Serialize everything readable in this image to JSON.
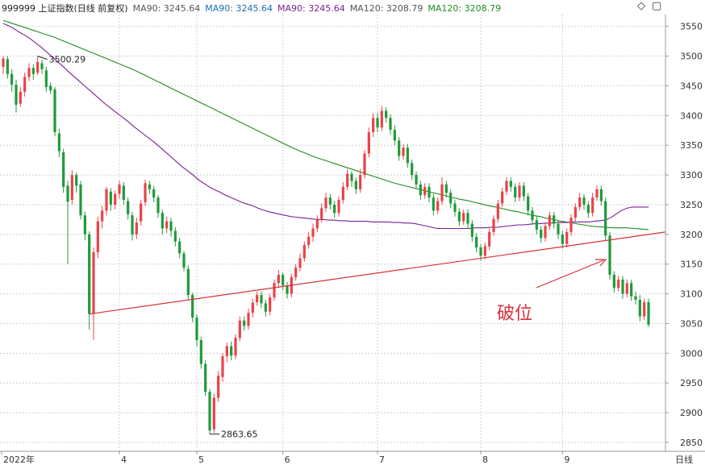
{
  "header": {
    "title": "999999 上证指数(日线 前复权)",
    "ma1_label": "MA90: 3245.64",
    "ma2_label": "MA90: 3245.64",
    "ma3_label": "MA90: 3245.64",
    "ma4_label": "MA120: 3208.79",
    "ma5_label": "MA120: 3208.79"
  },
  "icons": {
    "diamond": "diamond-icon",
    "maximize": "maximize-icon"
  },
  "colors": {
    "up": "#e8434a",
    "down": "#1f9a3a",
    "ma90": "#7a1f99",
    "ma120": "#1e8c1e",
    "trendline": "#d6303a",
    "grid": "#d0d0d0"
  },
  "chart_data": {
    "type": "candlestick",
    "period_label": "日线",
    "x_labels": [
      "2022年",
      "4",
      "5",
      "6",
      "7",
      "8",
      "9"
    ],
    "y_ticks": [
      2850,
      2900,
      2950,
      3000,
      3050,
      3100,
      3150,
      3200,
      3250,
      3300,
      3350,
      3400,
      3450,
      3500,
      3550
    ],
    "ylim": [
      2835,
      3570
    ],
    "grid": true,
    "high_marker": "3500.29",
    "low_marker": "2863.65",
    "annotation": "破位",
    "candles": [
      [
        3482,
        3496,
        3470,
        3500
      ],
      [
        3495,
        3470,
        3462,
        3500
      ],
      [
        3470,
        3452,
        3440,
        3478
      ],
      [
        3452,
        3418,
        3405,
        3460
      ],
      [
        3420,
        3440,
        3415,
        3448
      ],
      [
        3440,
        3465,
        3432,
        3472
      ],
      [
        3465,
        3480,
        3458,
        3488
      ],
      [
        3480,
        3470,
        3460,
        3486
      ],
      [
        3472,
        3490,
        3468,
        3500
      ],
      [
        3488,
        3478,
        3470,
        3494
      ],
      [
        3476,
        3448,
        3440,
        3482
      ],
      [
        3450,
        3442,
        3436,
        3456
      ],
      [
        3444,
        3372,
        3365,
        3448
      ],
      [
        3370,
        3340,
        3330,
        3378
      ],
      [
        3338,
        3280,
        3270,
        3344
      ],
      [
        3282,
        3255,
        3150,
        3290
      ],
      [
        3258,
        3300,
        3250,
        3308
      ],
      [
        3300,
        3282,
        3270,
        3304
      ],
      [
        3284,
        3232,
        3225,
        3290
      ],
      [
        3232,
        3200,
        3190,
        3238
      ],
      [
        3200,
        3066,
        3040,
        3205
      ],
      [
        3066,
        3170,
        3022,
        3178
      ],
      [
        3170,
        3222,
        3160,
        3230
      ],
      [
        3222,
        3240,
        3210,
        3248
      ],
      [
        3240,
        3276,
        3232,
        3280
      ],
      [
        3272,
        3250,
        3240,
        3278
      ],
      [
        3250,
        3268,
        3242,
        3274
      ],
      [
        3268,
        3284,
        3260,
        3290
      ],
      [
        3282,
        3258,
        3250,
        3288
      ],
      [
        3256,
        3234,
        3225,
        3262
      ],
      [
        3232,
        3200,
        3190,
        3238
      ],
      [
        3200,
        3220,
        3192,
        3228
      ],
      [
        3222,
        3252,
        3215,
        3258
      ],
      [
        3254,
        3286,
        3248,
        3292
      ],
      [
        3284,
        3276,
        3268,
        3290
      ],
      [
        3276,
        3262,
        3254,
        3282
      ],
      [
        3262,
        3236,
        3228,
        3266
      ],
      [
        3236,
        3210,
        3200,
        3242
      ],
      [
        3210,
        3222,
        3202,
        3230
      ],
      [
        3222,
        3206,
        3196,
        3228
      ],
      [
        3206,
        3188,
        3180,
        3212
      ],
      [
        3188,
        3168,
        3160,
        3194
      ],
      [
        3168,
        3144,
        3138,
        3172
      ],
      [
        3142,
        3098,
        3090,
        3148
      ],
      [
        3098,
        3060,
        3052,
        3102
      ],
      [
        3060,
        3022,
        3012,
        3066
      ],
      [
        3022,
        2982,
        2974,
        3028
      ],
      [
        2982,
        2935,
        2928,
        2988
      ],
      [
        2935,
        2870,
        2864,
        2940
      ],
      [
        2872,
        2925,
        2866,
        2932
      ],
      [
        2925,
        2962,
        2918,
        2970
      ],
      [
        2960,
        2995,
        2952,
        3000
      ],
      [
        2995,
        3012,
        2985,
        3018
      ],
      [
        3012,
        2996,
        2988,
        3020
      ],
      [
        2996,
        3026,
        2990,
        3032
      ],
      [
        3026,
        3055,
        3020,
        3062
      ],
      [
        3055,
        3046,
        3038,
        3062
      ],
      [
        3046,
        3068,
        3040,
        3075
      ],
      [
        3068,
        3085,
        3060,
        3092
      ],
      [
        3086,
        3098,
        3080,
        3104
      ],
      [
        3098,
        3084,
        3076,
        3104
      ],
      [
        3084,
        3070,
        3062,
        3090
      ],
      [
        3070,
        3094,
        3064,
        3100
      ],
      [
        3094,
        3118,
        3088,
        3124
      ],
      [
        3118,
        3132,
        3110,
        3140
      ],
      [
        3132,
        3114,
        3106,
        3136
      ],
      [
        3114,
        3100,
        3092,
        3120
      ],
      [
        3100,
        3128,
        3094,
        3134
      ],
      [
        3128,
        3144,
        3122,
        3150
      ],
      [
        3144,
        3160,
        3138,
        3168
      ],
      [
        3160,
        3182,
        3154,
        3188
      ],
      [
        3182,
        3196,
        3176,
        3204
      ],
      [
        3196,
        3210,
        3188,
        3218
      ],
      [
        3210,
        3226,
        3204,
        3232
      ],
      [
        3226,
        3244,
        3220,
        3252
      ],
      [
        3244,
        3262,
        3238,
        3270
      ],
      [
        3262,
        3250,
        3242,
        3268
      ],
      [
        3250,
        3236,
        3228,
        3256
      ],
      [
        3236,
        3258,
        3230,
        3264
      ],
      [
        3258,
        3280,
        3252,
        3288
      ],
      [
        3280,
        3302,
        3274,
        3310
      ],
      [
        3302,
        3290,
        3280,
        3306
      ],
      [
        3290,
        3276,
        3268,
        3296
      ],
      [
        3276,
        3300,
        3270,
        3310
      ],
      [
        3300,
        3336,
        3294,
        3342
      ],
      [
        3336,
        3372,
        3330,
        3380
      ],
      [
        3372,
        3396,
        3364,
        3404
      ],
      [
        3396,
        3380,
        3372,
        3404
      ],
      [
        3380,
        3408,
        3374,
        3416
      ],
      [
        3408,
        3396,
        3388,
        3414
      ],
      [
        3396,
        3376,
        3368,
        3402
      ],
      [
        3376,
        3358,
        3350,
        3384
      ],
      [
        3358,
        3332,
        3324,
        3364
      ],
      [
        3332,
        3346,
        3326,
        3352
      ],
      [
        3346,
        3320,
        3312,
        3352
      ],
      [
        3320,
        3300,
        3292,
        3326
      ],
      [
        3300,
        3284,
        3276,
        3306
      ],
      [
        3284,
        3266,
        3258,
        3290
      ],
      [
        3266,
        3280,
        3260,
        3286
      ],
      [
        3280,
        3262,
        3254,
        3286
      ],
      [
        3262,
        3240,
        3232,
        3268
      ],
      [
        3240,
        3256,
        3234,
        3262
      ],
      [
        3256,
        3284,
        3250,
        3296
      ],
      [
        3284,
        3270,
        3262,
        3290
      ],
      [
        3270,
        3252,
        3244,
        3276
      ],
      [
        3252,
        3238,
        3230,
        3258
      ],
      [
        3238,
        3222,
        3214,
        3244
      ],
      [
        3222,
        3236,
        3216,
        3242
      ],
      [
        3236,
        3218,
        3210,
        3242
      ],
      [
        3218,
        3196,
        3188,
        3224
      ],
      [
        3196,
        3178,
        3170,
        3202
      ],
      [
        3178,
        3164,
        3156,
        3184
      ],
      [
        3164,
        3180,
        3158,
        3186
      ],
      [
        3180,
        3204,
        3174,
        3210
      ],
      [
        3204,
        3226,
        3198,
        3232
      ],
      [
        3226,
        3252,
        3220,
        3258
      ],
      [
        3252,
        3272,
        3246,
        3278
      ],
      [
        3272,
        3290,
        3266,
        3296
      ],
      [
        3290,
        3280,
        3272,
        3296
      ],
      [
        3280,
        3262,
        3254,
        3286
      ],
      [
        3262,
        3282,
        3256,
        3288
      ],
      [
        3282,
        3264,
        3256,
        3288
      ],
      [
        3264,
        3240,
        3232,
        3270
      ],
      [
        3240,
        3224,
        3216,
        3246
      ],
      [
        3224,
        3208,
        3200,
        3230
      ],
      [
        3208,
        3194,
        3186,
        3214
      ],
      [
        3194,
        3214,
        3188,
        3220
      ],
      [
        3214,
        3232,
        3208,
        3238
      ],
      [
        3232,
        3218,
        3210,
        3238
      ],
      [
        3218,
        3200,
        3192,
        3224
      ],
      [
        3200,
        3184,
        3176,
        3206
      ],
      [
        3184,
        3204,
        3178,
        3210
      ],
      [
        3204,
        3228,
        3198,
        3234
      ],
      [
        3228,
        3246,
        3222,
        3252
      ],
      [
        3246,
        3262,
        3240,
        3270
      ],
      [
        3262,
        3250,
        3242,
        3268
      ],
      [
        3250,
        3236,
        3228,
        3256
      ],
      [
        3236,
        3262,
        3230,
        3270
      ],
      [
        3262,
        3276,
        3256,
        3282
      ],
      [
        3276,
        3256,
        3248,
        3282
      ],
      [
        3256,
        3198,
        3190,
        3262
      ],
      [
        3198,
        3132,
        3124,
        3204
      ],
      [
        3132,
        3110,
        3102,
        3138
      ],
      [
        3110,
        3124,
        3104,
        3130
      ],
      [
        3124,
        3100,
        3092,
        3130
      ],
      [
        3100,
        3118,
        3094,
        3124
      ],
      [
        3118,
        3096,
        3088,
        3124
      ],
      [
        3096,
        3090,
        3082,
        3104
      ],
      [
        3090,
        3062,
        3054,
        3098
      ],
      [
        3062,
        3086,
        3056,
        3092
      ],
      [
        3086,
        3048,
        3044,
        3092
      ]
    ],
    "ma90": [
      3555,
      3551,
      3546,
      3540,
      3535,
      3529,
      3522,
      3515,
      3507,
      3499,
      3491,
      3483,
      3474,
      3466,
      3458,
      3450,
      3442,
      3434,
      3426,
      3418,
      3411,
      3404,
      3397,
      3390,
      3382,
      3375,
      3368,
      3361,
      3354,
      3346,
      3338,
      3330,
      3322,
      3314,
      3307,
      3300,
      3292,
      3286,
      3280,
      3275,
      3271,
      3266,
      3262,
      3258,
      3254,
      3251,
      3248,
      3244,
      3241,
      3238,
      3236,
      3234,
      3232,
      3230,
      3229,
      3228,
      3227,
      3226,
      3225,
      3225,
      3224,
      3224,
      3223,
      3223,
      3222,
      3222,
      3222,
      3222,
      3221,
      3221,
      3221,
      3221,
      3220,
      3220,
      3219,
      3219,
      3218,
      3216,
      3214,
      3212,
      3210,
      3210,
      3210,
      3210,
      3210,
      3210,
      3210,
      3211,
      3211,
      3211,
      3212,
      3212,
      3213,
      3214,
      3215,
      3216,
      3216,
      3217,
      3218,
      3218,
      3219,
      3219,
      3220,
      3220,
      3220,
      3221,
      3221,
      3221,
      3221,
      3222,
      3223,
      3224,
      3228,
      3234,
      3240,
      3244,
      3246,
      3246,
      3246,
      3246
    ],
    "ma120": [
      3560,
      3556,
      3552,
      3548,
      3544,
      3540,
      3536,
      3532,
      3527,
      3522,
      3517,
      3512,
      3507,
      3502,
      3497,
      3492,
      3487,
      3482,
      3477,
      3471,
      3465,
      3459,
      3453,
      3447,
      3441,
      3435,
      3429,
      3423,
      3417,
      3411,
      3405,
      3399,
      3393,
      3387,
      3381,
      3375,
      3369,
      3363,
      3357,
      3351,
      3345,
      3340,
      3335,
      3330,
      3326,
      3322,
      3318,
      3314,
      3310,
      3306,
      3302,
      3298,
      3294,
      3290,
      3286,
      3283,
      3280,
      3277,
      3274,
      3271,
      3268,
      3265,
      3262,
      3259,
      3257,
      3254,
      3251,
      3248,
      3246,
      3243,
      3240,
      3238,
      3235,
      3232,
      3230,
      3227,
      3225,
      3222,
      3220,
      3218,
      3216,
      3214,
      3213,
      3212,
      3211,
      3211,
      3211,
      3210,
      3209,
      3208
    ]
  }
}
